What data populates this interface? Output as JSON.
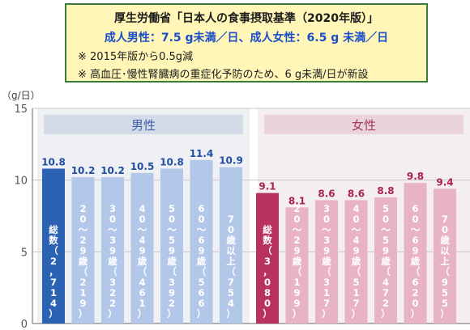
{
  "notes": {
    "title": "厚生労働省「日本人の食事摂取基準（2020年版）」",
    "target": "成人男性：7.5 g未満／日、成人女性：6.5 g 未満／日",
    "note1": "※ 2015年版から0.5g減",
    "note2": "※ 高血圧･慢性腎臓病の重症化予防のため、6 g未満/日が新設"
  },
  "chart_data": {
    "type": "bar",
    "ylabel": "（g/日）",
    "ylim": [
      0,
      15
    ],
    "yticks": [
      "0",
      "5",
      "10",
      "15"
    ],
    "groups": [
      {
        "name": "男性",
        "categories": [
          "総数（2,714）",
          "20～29歳（219）",
          "30～39歳（322）",
          "40～49歳（461）",
          "50～59歳（392）",
          "60～69歳（566）",
          "70歳以上（754）"
        ],
        "values": [
          10.8,
          10.2,
          10.2,
          10.5,
          10.8,
          11.4,
          10.9
        ],
        "labels": [
          "10.8",
          "10.2",
          "10.2",
          "10.5",
          "10.8",
          "11.4",
          "10.9"
        ],
        "colors": [
          "#2c62b4",
          "#b3c7e8",
          "#b3c7e8",
          "#b3c7e8",
          "#b3c7e8",
          "#b3c7e8",
          "#b3c7e8"
        ],
        "bar_text": [
          [
            "総",
            "数",
            "（",
            "2",
            "，",
            "7",
            "1",
            "4",
            "）"
          ],
          [
            "2",
            "0",
            "～",
            "2",
            "9",
            "歳",
            "（",
            "2",
            "1",
            "9",
            "）"
          ],
          [
            "3",
            "0",
            "～",
            "3",
            "9",
            "歳",
            "（",
            "3",
            "2",
            "2",
            "）"
          ],
          [
            "4",
            "0",
            "～",
            "4",
            "9",
            "歳",
            "（",
            "4",
            "6",
            "1",
            "）"
          ],
          [
            "5",
            "0",
            "～",
            "5",
            "9",
            "歳",
            "（",
            "3",
            "9",
            "2",
            "）"
          ],
          [
            "6",
            "0",
            "～",
            "6",
            "9",
            "歳",
            "（",
            "5",
            "6",
            "6",
            "）"
          ],
          [
            "7",
            "0",
            "歳",
            "以",
            "上",
            "（",
            "7",
            "5",
            "4",
            "）"
          ]
        ]
      },
      {
        "name": "女性",
        "categories": [
          "総数（3,080）",
          "20～29歳（199）",
          "30～39歳（317）",
          "40～49歳（517）",
          "50～59歳（472）",
          "60～69歳（620）",
          "70歳以上（955）"
        ],
        "values": [
          9.1,
          8.1,
          8.6,
          8.6,
          8.8,
          9.8,
          9.4
        ],
        "labels": [
          "9.1",
          "8.1",
          "8.6",
          "8.6",
          "8.8",
          "9.8",
          "9.4"
        ],
        "colors": [
          "#b7325c",
          "#e8b3c3",
          "#e8b3c3",
          "#e8b3c3",
          "#e8b3c3",
          "#e8b3c3",
          "#e8b3c3"
        ],
        "bar_text": [
          [
            "総",
            "数",
            "（",
            "3",
            "，",
            "0",
            "8",
            "0",
            "）"
          ],
          [
            "2",
            "0",
            "～",
            "2",
            "9",
            "歳",
            "（",
            "1",
            "9",
            "9",
            "）"
          ],
          [
            "3",
            "0",
            "～",
            "3",
            "9",
            "歳",
            "（",
            "3",
            "1",
            "7",
            "）"
          ],
          [
            "4",
            "0",
            "～",
            "4",
            "9",
            "歳",
            "（",
            "5",
            "1",
            "7",
            "）"
          ],
          [
            "5",
            "0",
            "～",
            "5",
            "9",
            "歳",
            "（",
            "4",
            "7",
            "2",
            "）"
          ],
          [
            "6",
            "0",
            "～",
            "6",
            "9",
            "歳",
            "（",
            "6",
            "2",
            "0",
            "）"
          ],
          [
            "7",
            "0",
            "歳",
            "以",
            "上",
            "（",
            "9",
            "5",
            "5",
            "）"
          ]
        ]
      }
    ],
    "colors": {
      "male_panel": "#eef0f4",
      "female_panel": "#f4eef0",
      "male_header": "#d3dbe9",
      "female_header": "#ead3dc",
      "male_header_text": "#3b5fa8",
      "female_header_text": "#a03a60",
      "male_label": "#1f4ea3",
      "female_label": "#a8244f"
    }
  }
}
